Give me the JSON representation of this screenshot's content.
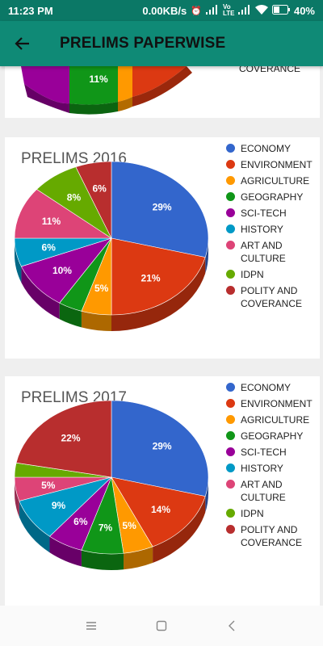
{
  "status_bar": {
    "time": "11:23 PM",
    "net_speed": "0.00KB/s",
    "battery": "40%",
    "volte": "Vo LTE"
  },
  "app_bar": {
    "title": "PRELIMS PAPERWISE",
    "back_icon": "arrow-left-icon"
  },
  "colors": {
    "ECONOMY": "#3366cc",
    "ENVIRONMENT": "#dc3912",
    "AGRICULTURE": "#ff9900",
    "GEOGRAPHY": "#109618",
    "SCI-TECH": "#990099",
    "HISTORY": "#0099c6",
    "ART AND CULTURE": "#dd4477",
    "IDPN": "#66aa00",
    "POLITY AND COVERANCE": "#b82e2e"
  },
  "legend_items": [
    "ECONOMY",
    "ENVIRONMENT",
    "AGRICULTURE",
    "GEOGRAPHY",
    "SCI-TECH",
    "HISTORY",
    "ART AND CULTURE",
    "IDPN",
    "POLITY AND COVERANCE"
  ],
  "partial_card": {
    "visible_label": "11%",
    "legend_tail": "COVERANCE"
  },
  "chart_data": [
    {
      "type": "pie",
      "title": "PRELIMS 2016",
      "categories": [
        "ECONOMY",
        "ENVIRONMENT",
        "AGRICULTURE",
        "GEOGRAPHY",
        "SCI-TECH",
        "HISTORY",
        "ART AND CULTURE",
        "IDPN",
        "POLITY AND COVERANCE"
      ],
      "values": [
        29,
        21,
        5,
        4,
        10,
        6,
        11,
        8,
        6
      ],
      "labels": [
        "29%",
        "21%",
        "5%",
        "",
        "10%",
        "6%",
        "11%",
        "8%",
        "6%"
      ],
      "legend_position": "right",
      "style": "3d"
    },
    {
      "type": "pie",
      "title": "PRELIMS 2017",
      "categories": [
        "ECONOMY",
        "ENVIRONMENT",
        "AGRICULTURE",
        "GEOGRAPHY",
        "SCI-TECH",
        "HISTORY",
        "ART AND CULTURE",
        "IDPN",
        "POLITY AND COVERANCE"
      ],
      "values": [
        29,
        14,
        5,
        7,
        6,
        9,
        5,
        3,
        22
      ],
      "labels": [
        "29%",
        "14%",
        "5%",
        "7%",
        "6%",
        "9%",
        "5%",
        "",
        "22%"
      ],
      "legend_position": "right",
      "style": "3d"
    }
  ],
  "nav_bar": {
    "menu_icon": "menu-icon",
    "home_icon": "home-square-icon",
    "back_icon": "back-chevron-icon"
  }
}
